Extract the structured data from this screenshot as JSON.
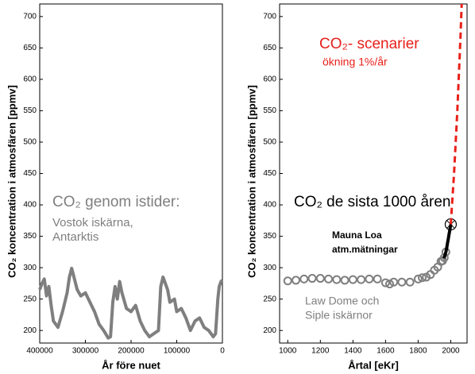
{
  "chart_data": [
    {
      "type": "line",
      "xlabel": "År före nuet",
      "ylabel": "CO₂ koncentration i atmosfären [ppmv]",
      "xlim": [
        400000,
        0
      ],
      "xticks": [
        400000,
        300000,
        200000,
        100000,
        0
      ],
      "ylim": [
        180,
        720
      ],
      "yticks": [
        200,
        250,
        300,
        350,
        400,
        450,
        500,
        550,
        600,
        650,
        700
      ],
      "series": [
        {
          "color": "#7f7f7f",
          "x": [
            400000,
            395000,
            390000,
            385000,
            380000,
            375000,
            370000,
            360000,
            350000,
            340000,
            335000,
            330000,
            325000,
            318000,
            310000,
            300000,
            290000,
            280000,
            270000,
            260000,
            250000,
            245000,
            240000,
            235000,
            230000,
            225000,
            220000,
            210000,
            200000,
            190000,
            180000,
            170000,
            160000,
            150000,
            140000,
            135000,
            130000,
            125000,
            120000,
            115000,
            105000,
            100000,
            90000,
            80000,
            70000,
            60000,
            50000,
            40000,
            30000,
            20000,
            15000,
            10000,
            7000,
            3000,
            0
          ],
          "values": [
            265,
            275,
            282,
            255,
            270,
            240,
            215,
            205,
            230,
            260,
            285,
            299,
            285,
            265,
            255,
            260,
            245,
            230,
            210,
            200,
            188,
            190,
            245,
            270,
            250,
            278,
            260,
            235,
            230,
            240,
            215,
            200,
            190,
            195,
            200,
            270,
            285,
            275,
            265,
            245,
            250,
            230,
            235,
            220,
            200,
            215,
            220,
            205,
            200,
            190,
            195,
            250,
            270,
            278,
            280
          ]
        }
      ],
      "annotations": [
        {
          "text": "CO₂ genom istider:",
          "color": "#7f7f7f"
        },
        {
          "text": "Vostok iskärna,",
          "color": "#7f7f7f"
        },
        {
          "text": "Antarktis",
          "color": "#7f7f7f"
        }
      ]
    },
    {
      "type": "line",
      "xlabel": "Årtal [eKr]",
      "ylabel": "CO₂ koncentration i atmosfären [ppmv]",
      "xlim": [
        950,
        2100
      ],
      "xticks": [
        1000,
        1200,
        1400,
        1600,
        1800,
        2000
      ],
      "ylim": [
        180,
        720
      ],
      "yticks": [
        200,
        250,
        300,
        350,
        400,
        450,
        500,
        550,
        600,
        650,
        700
      ],
      "series": [
        {
          "color": "#7f7f7f",
          "marker": "circle",
          "x": [
            1000,
            1050,
            1100,
            1150,
            1200,
            1250,
            1300,
            1350,
            1400,
            1450,
            1500,
            1550,
            1600,
            1625,
            1650,
            1700,
            1750,
            1800,
            1825,
            1850,
            1875,
            1900,
            1920,
            1940,
            1950,
            1960,
            1970
          ],
          "values": [
            279,
            280,
            282,
            283,
            283,
            282,
            281,
            280,
            281,
            281,
            282,
            282,
            276,
            274,
            277,
            277,
            277,
            282,
            284,
            285,
            289,
            296,
            301,
            310,
            311,
            316,
            325
          ]
        },
        {
          "color": "#000000",
          "end_marker": true,
          "x": [
            1958,
            1965,
            1970,
            1975,
            1980,
            1985,
            1990,
            1995,
            2000
          ],
          "values": [
            315,
            320,
            325,
            331,
            339,
            346,
            354,
            361,
            369
          ]
        },
        {
          "color": "#e8201a",
          "dashed": true,
          "x": [
            2000,
            2020,
            2040,
            2060,
            2067
          ],
          "values": [
            369,
            449,
            548,
            669,
            720
          ]
        }
      ],
      "annotations": [
        {
          "text": "CO₂- scenarier",
          "color": "#e8201a"
        },
        {
          "text": "ökning 1%/år",
          "color": "#e8201a"
        },
        {
          "text": "CO₂ de sista 1000 åren",
          "color": "#000000"
        },
        {
          "text": "Mauna Loa",
          "color": "#000000"
        },
        {
          "text": "atm.mätningar",
          "color": "#000000"
        },
        {
          "text": "Law Dome och",
          "color": "#7f7f7f"
        },
        {
          "text": "Siple iskärnor",
          "color": "#7f7f7f"
        }
      ]
    }
  ]
}
